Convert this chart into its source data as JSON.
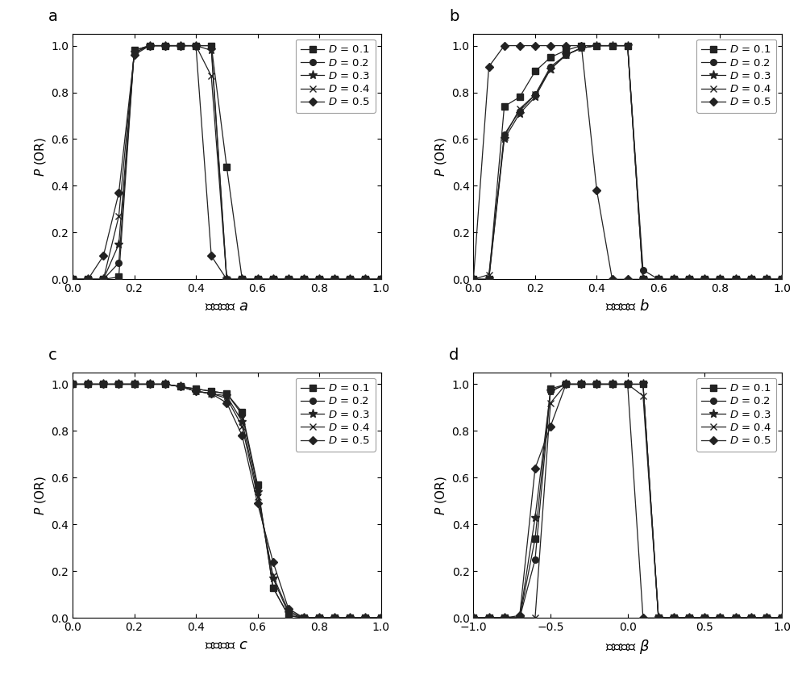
{
  "panel_a": {
    "x": [
      0.0,
      0.05,
      0.1,
      0.15,
      0.2,
      0.25,
      0.3,
      0.35,
      0.4,
      0.45,
      0.5,
      0.55,
      0.6,
      0.65,
      0.7,
      0.75,
      0.8,
      0.85,
      0.9,
      0.95,
      1.0
    ],
    "D01": [
      0.0,
      0.0,
      0.0,
      0.01,
      0.98,
      1.0,
      1.0,
      1.0,
      1.0,
      1.0,
      0.48,
      0.0,
      0.0,
      0.0,
      0.0,
      0.0,
      0.0,
      0.0,
      0.0,
      0.0,
      0.0
    ],
    "D02": [
      0.0,
      0.0,
      0.0,
      0.07,
      0.98,
      1.0,
      1.0,
      1.0,
      1.0,
      1.0,
      0.0,
      0.0,
      0.0,
      0.0,
      0.0,
      0.0,
      0.0,
      0.0,
      0.0,
      0.0,
      0.0
    ],
    "D03": [
      0.0,
      0.0,
      0.0,
      0.15,
      0.97,
      1.0,
      1.0,
      1.0,
      1.0,
      0.98,
      0.0,
      0.0,
      0.0,
      0.0,
      0.0,
      0.0,
      0.0,
      0.0,
      0.0,
      0.0,
      0.0
    ],
    "D04": [
      0.0,
      0.0,
      0.0,
      0.27,
      0.97,
      1.0,
      1.0,
      1.0,
      1.0,
      0.87,
      0.0,
      0.0,
      0.0,
      0.0,
      0.0,
      0.0,
      0.0,
      0.0,
      0.0,
      0.0,
      0.0
    ],
    "D05": [
      0.0,
      0.0,
      0.1,
      0.37,
      0.96,
      1.0,
      1.0,
      1.0,
      1.0,
      0.1,
      0.0,
      0.0,
      0.0,
      0.0,
      0.0,
      0.0,
      0.0,
      0.0,
      0.0,
      0.0,
      0.0
    ],
    "xlabel": "势阱参数 $a$",
    "ylabel": "$P$ (OR)",
    "xlim": [
      0.0,
      1.0
    ],
    "ylim": [
      0.0,
      1.05
    ],
    "xticks": [
      0.0,
      0.2,
      0.4,
      0.6,
      0.8,
      1.0
    ],
    "yticks": [
      0.0,
      0.2,
      0.4,
      0.6,
      0.8,
      1.0
    ],
    "label": "a"
  },
  "panel_b": {
    "x": [
      0.0,
      0.05,
      0.1,
      0.15,
      0.2,
      0.25,
      0.3,
      0.35,
      0.4,
      0.45,
      0.5,
      0.55,
      0.6,
      0.65,
      0.7,
      0.75,
      0.8,
      0.85,
      0.9,
      0.95,
      1.0
    ],
    "D01": [
      0.0,
      0.0,
      0.74,
      0.78,
      0.89,
      0.95,
      0.98,
      1.0,
      1.0,
      1.0,
      1.0,
      0.0,
      0.0,
      0.0,
      0.0,
      0.0,
      0.0,
      0.0,
      0.0,
      0.0,
      0.0
    ],
    "D02": [
      0.0,
      0.0,
      0.62,
      0.72,
      0.79,
      0.91,
      0.96,
      0.99,
      1.0,
      1.0,
      1.0,
      0.04,
      0.0,
      0.0,
      0.0,
      0.0,
      0.0,
      0.0,
      0.0,
      0.0,
      0.0
    ],
    "D03": [
      0.0,
      0.0,
      0.6,
      0.71,
      0.78,
      0.9,
      0.96,
      0.99,
      1.0,
      1.0,
      1.0,
      0.0,
      0.0,
      0.0,
      0.0,
      0.0,
      0.0,
      0.0,
      0.0,
      0.0,
      0.0
    ],
    "D04": [
      0.0,
      0.02,
      0.61,
      0.73,
      0.79,
      0.9,
      0.96,
      0.99,
      1.0,
      1.0,
      1.0,
      0.0,
      0.0,
      0.0,
      0.0,
      0.0,
      0.0,
      0.0,
      0.0,
      0.0,
      0.0
    ],
    "D05": [
      0.0,
      0.91,
      1.0,
      1.0,
      1.0,
      1.0,
      1.0,
      1.0,
      0.38,
      0.0,
      0.0,
      0.0,
      0.0,
      0.0,
      0.0,
      0.0,
      0.0,
      0.0,
      0.0,
      0.0,
      0.0
    ],
    "xlabel": "势阱参数 $b$",
    "ylabel": "$P$ (OR)",
    "xlim": [
      0.0,
      1.0
    ],
    "ylim": [
      0.0,
      1.05
    ],
    "xticks": [
      0.0,
      0.2,
      0.4,
      0.6,
      0.8,
      1.0
    ],
    "yticks": [
      0.0,
      0.2,
      0.4,
      0.6,
      0.8,
      1.0
    ],
    "label": "b"
  },
  "panel_c": {
    "x": [
      0.0,
      0.05,
      0.1,
      0.15,
      0.2,
      0.25,
      0.3,
      0.35,
      0.4,
      0.45,
      0.5,
      0.55,
      0.6,
      0.65,
      0.7,
      0.75,
      0.8,
      0.85,
      0.9,
      0.95,
      1.0
    ],
    "D01": [
      1.0,
      1.0,
      1.0,
      1.0,
      1.0,
      1.0,
      1.0,
      0.99,
      0.98,
      0.97,
      0.96,
      0.88,
      0.57,
      0.13,
      0.01,
      0.0,
      0.0,
      0.0,
      0.0,
      0.0,
      0.0
    ],
    "D02": [
      1.0,
      1.0,
      1.0,
      1.0,
      1.0,
      1.0,
      1.0,
      0.99,
      0.98,
      0.97,
      0.96,
      0.87,
      0.56,
      0.13,
      0.01,
      0.0,
      0.0,
      0.0,
      0.0,
      0.0,
      0.0
    ],
    "D03": [
      1.0,
      1.0,
      1.0,
      1.0,
      1.0,
      1.0,
      1.0,
      0.99,
      0.97,
      0.96,
      0.95,
      0.84,
      0.54,
      0.17,
      0.02,
      0.0,
      0.0,
      0.0,
      0.0,
      0.0,
      0.0
    ],
    "D04": [
      1.0,
      1.0,
      1.0,
      1.0,
      1.0,
      1.0,
      1.0,
      0.99,
      0.97,
      0.96,
      0.94,
      0.82,
      0.52,
      0.18,
      0.03,
      0.0,
      0.0,
      0.0,
      0.0,
      0.0,
      0.0
    ],
    "D05": [
      1.0,
      1.0,
      1.0,
      1.0,
      1.0,
      1.0,
      1.0,
      0.99,
      0.97,
      0.96,
      0.92,
      0.78,
      0.49,
      0.24,
      0.04,
      0.0,
      0.0,
      0.0,
      0.0,
      0.0,
      0.0
    ],
    "xlabel": "势阱参数 $c$",
    "ylabel": "$P$ (OR)",
    "xlim": [
      0.0,
      1.0
    ],
    "ylim": [
      0.0,
      1.05
    ],
    "xticks": [
      0.0,
      0.2,
      0.4,
      0.6,
      0.8,
      1.0
    ],
    "yticks": [
      0.0,
      0.2,
      0.4,
      0.6,
      0.8,
      1.0
    ],
    "label": "c"
  },
  "panel_d": {
    "x": [
      -1.0,
      -0.9,
      -0.8,
      -0.7,
      -0.6,
      -0.5,
      -0.4,
      -0.3,
      -0.2,
      -0.1,
      0.0,
      0.1,
      0.2,
      0.3,
      0.4,
      0.5,
      0.6,
      0.7,
      0.8,
      0.9,
      1.0
    ],
    "D01": [
      0.0,
      0.0,
      0.0,
      0.0,
      0.34,
      0.98,
      1.0,
      1.0,
      1.0,
      1.0,
      1.0,
      1.0,
      0.0,
      0.0,
      0.0,
      0.0,
      0.0,
      0.0,
      0.0,
      0.0,
      0.0
    ],
    "D02": [
      0.0,
      0.0,
      0.0,
      0.0,
      0.25,
      0.97,
      1.0,
      1.0,
      1.0,
      1.0,
      1.0,
      1.0,
      0.0,
      0.0,
      0.0,
      0.0,
      0.0,
      0.0,
      0.0,
      0.0,
      0.0
    ],
    "D03": [
      0.0,
      0.0,
      0.0,
      0.0,
      0.43,
      0.97,
      1.0,
      1.0,
      1.0,
      1.0,
      1.0,
      1.0,
      0.0,
      0.0,
      0.0,
      0.0,
      0.0,
      0.0,
      0.0,
      0.0,
      0.0
    ],
    "D04": [
      0.0,
      0.0,
      0.0,
      0.0,
      0.0,
      0.92,
      1.0,
      1.0,
      1.0,
      1.0,
      1.0,
      0.95,
      0.0,
      0.0,
      0.0,
      0.0,
      0.0,
      0.0,
      0.0,
      0.0,
      0.0
    ],
    "D05": [
      0.0,
      0.0,
      0.0,
      0.01,
      0.64,
      0.82,
      1.0,
      1.0,
      1.0,
      1.0,
      1.0,
      0.0,
      0.0,
      0.0,
      0.0,
      0.0,
      0.0,
      0.0,
      0.0,
      0.0,
      0.0
    ],
    "xlabel": "偏置系数 $\\beta$",
    "ylabel": "$P$ (OR)",
    "xlim": [
      -1.0,
      1.0
    ],
    "ylim": [
      0.0,
      1.05
    ],
    "xticks": [
      -1.0,
      -0.5,
      0.0,
      0.5,
      1.0
    ],
    "yticks": [
      0.0,
      0.2,
      0.4,
      0.6,
      0.8,
      1.0
    ],
    "label": "d"
  },
  "legend_labels": [
    "$D$ = 0.1",
    "$D$ = 0.2",
    "$D$ = 0.3",
    "$D$ = 0.4",
    "$D$ = 0.5"
  ],
  "markers": [
    "s",
    "o",
    "*",
    "x",
    "D"
  ],
  "line_color": "#404040",
  "figsize": [
    10.0,
    8.42
  ],
  "dpi": 100
}
